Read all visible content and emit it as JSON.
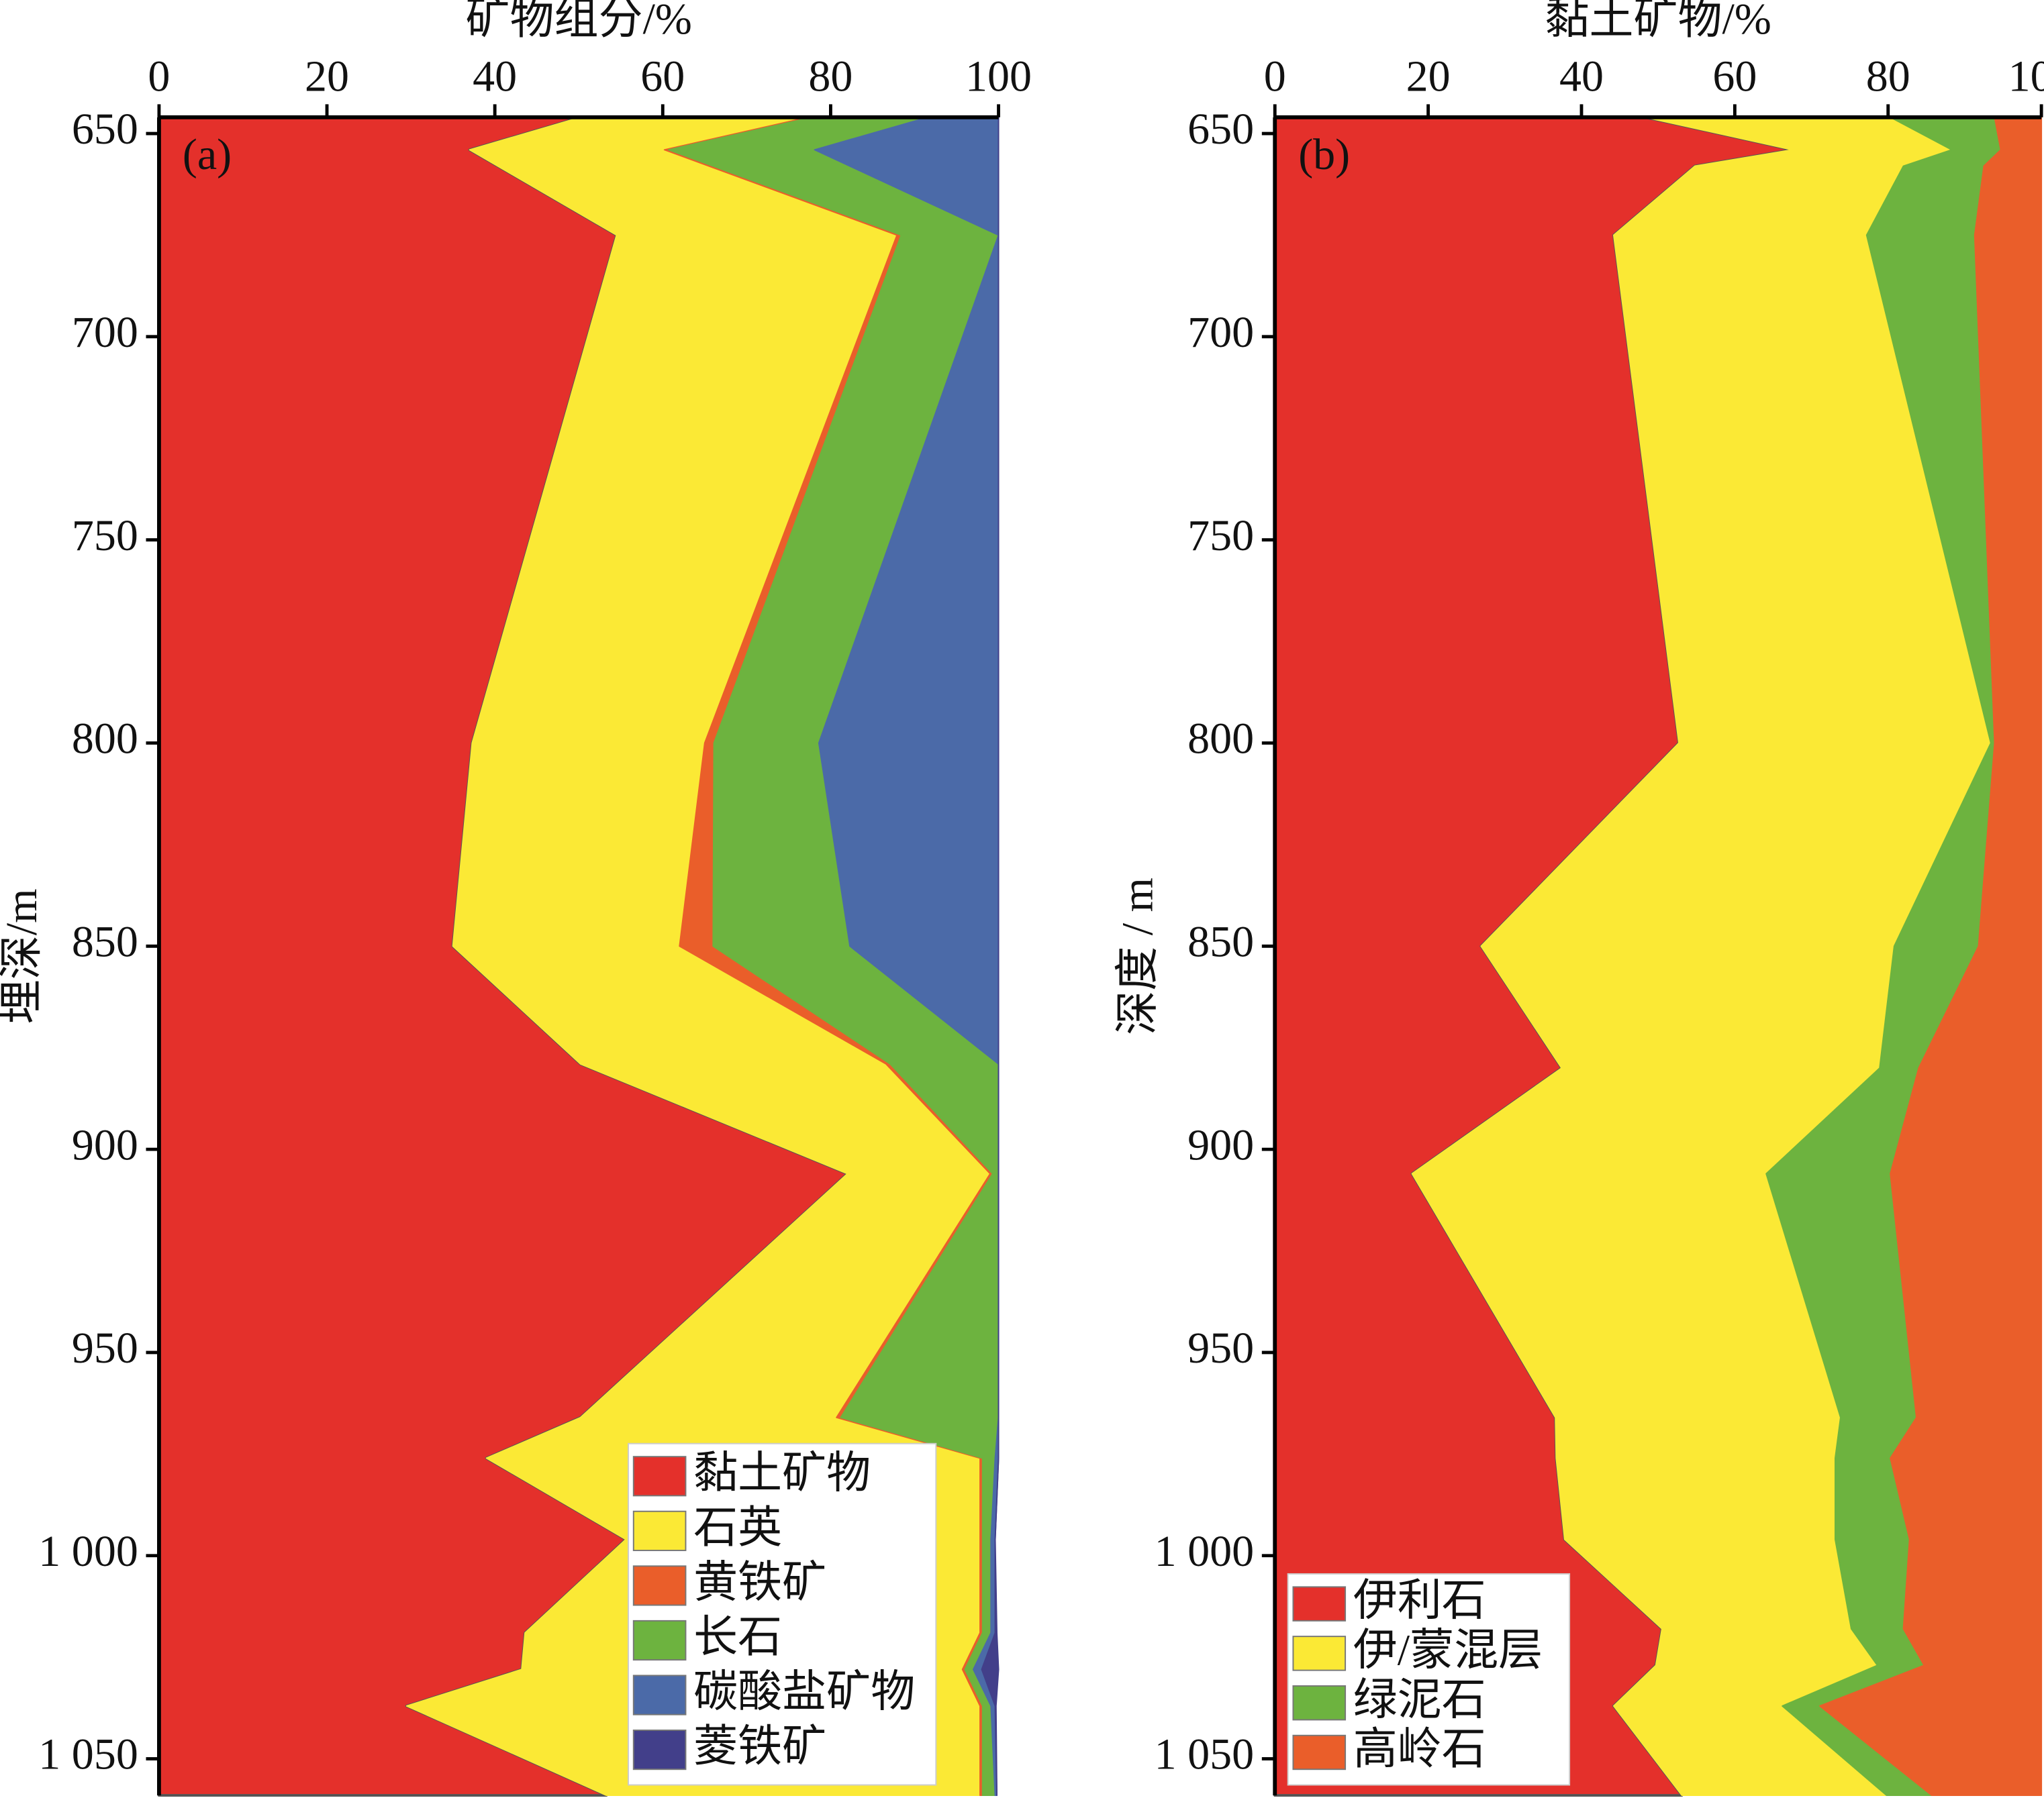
{
  "chart_data": [
    {
      "type": "stacked_area",
      "orientation": "horizontal",
      "xlabel": "矿物组分/%",
      "ylabel": "埋深/m",
      "annotation": "(a)",
      "xlim": [
        0,
        100
      ],
      "xticks": [
        0,
        20,
        40,
        60,
        80,
        100
      ],
      "ylim": [
        646,
        1059
      ],
      "y_reversed": true,
      "yticks": [
        650,
        700,
        750,
        800,
        850,
        900,
        950,
        {
          "value": 1000,
          "label": "1 000"
        },
        {
          "value": 1050,
          "label": "1 050"
        }
      ],
      "legend": "lower right",
      "y": [
        646,
        654,
        675,
        800,
        850,
        879,
        906,
        966,
        976,
        996,
        1019,
        1028,
        1037,
        1059
      ],
      "series": [
        {
          "name": "黏土矿物",
          "color": "#e4302b",
          "values": [
            50.2,
            37,
            54.5,
            37.3,
            35,
            50.2,
            82,
            50.2,
            39,
            55.6,
            43.6,
            43.2,
            29.5,
            53.3
          ]
        },
        {
          "name": "石英",
          "color": "#fbe935",
          "values": [
            27.1,
            23.2,
            33.4,
            27.7,
            27,
            36.4,
            17,
            30.5,
            58.8,
            42.2,
            54.2,
            52.5,
            68.3,
            44.5
          ]
        },
        {
          "name": "黄铁矿",
          "color": "#ea5e2a",
          "values": [
            0.5,
            0.5,
            0.5,
            1.1,
            4,
            0.5,
            0.3,
            0.5,
            0.3,
            0.3,
            0.3,
            0.3,
            0.3,
            0.3
          ]
        },
        {
          "name": "长石",
          "color": "#6db33f",
          "values": [
            13.8,
            17.4,
            11.6,
            12.5,
            16.3,
            12.9,
            0.7,
            18.8,
            1.5,
            1,
            1,
            1,
            1,
            1.5
          ]
        },
        {
          "name": "碳酸盐矿物",
          "color": "#4b6aa8",
          "values": [
            8.4,
            21.9,
            0,
            21.4,
            17.7,
            0,
            0,
            0,
            0.4,
            0.5,
            0.5,
            1,
            0.5,
            0.2
          ]
        },
        {
          "name": "菱铁矿",
          "color": "#423f8a",
          "values": [
            0,
            0,
            0,
            0,
            0,
            0,
            0,
            0,
            0,
            0,
            0.2,
            2,
            0.1,
            0
          ]
        }
      ]
    },
    {
      "type": "stacked_area",
      "orientation": "horizontal",
      "xlabel": "黏土矿物/%",
      "ylabel": "深度 / m",
      "annotation": "(b)",
      "xlim": [
        0,
        100
      ],
      "xticks": [
        0,
        20,
        40,
        60,
        80,
        100
      ],
      "ylim": [
        646,
        1059
      ],
      "y_reversed": true,
      "yticks": [
        650,
        700,
        750,
        800,
        850,
        900,
        950,
        {
          "value": 1000,
          "label": "1 000"
        },
        {
          "value": 1050,
          "label": "1 050"
        }
      ],
      "legend": "lower left",
      "y": [
        646,
        654,
        658,
        675,
        800,
        850,
        880,
        906,
        966,
        976,
        996,
        1018,
        1027,
        1037,
        1059
      ],
      "series": [
        {
          "name": "伊利石",
          "color": "#e4302b",
          "values": [
            48.3,
            67.5,
            54.8,
            44.2,
            52.7,
            26.9,
            37.4,
            17.9,
            36.6,
            36.7,
            37.8,
            50.5,
            49.7,
            44.2,
            53.1
          ]
        },
        {
          "name": "伊/蒙混层",
          "color": "#fbe935",
          "values": [
            32,
            20.8,
            27.2,
            33,
            40.7,
            53.9,
            41.5,
            46.2,
            37.2,
            36.4,
            35.3,
            24.7,
            28.9,
            22,
            26.7
          ]
        },
        {
          "name": "绿泥石",
          "color": "#6db33f",
          "values": [
            13.6,
            6.4,
            10.5,
            14.1,
            0.5,
            11,
            5.1,
            16.2,
            9.9,
            7.2,
            9.7,
            6.8,
            6.1,
            4.9,
            5.9
          ]
        },
        {
          "name": "高岭石",
          "color": "#ea5e2a",
          "values": [
            6.1,
            5.3,
            7.5,
            8.7,
            6.1,
            8.2,
            16,
            19.7,
            16.3,
            19.7,
            17.2,
            18,
            15.3,
            28.9,
            14.3
          ]
        }
      ]
    }
  ]
}
